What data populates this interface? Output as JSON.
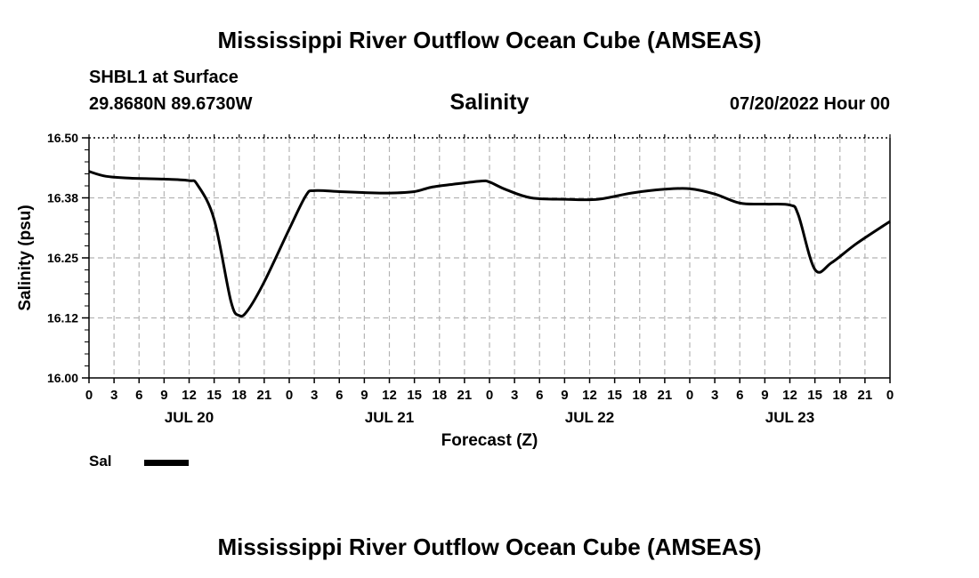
{
  "header": {
    "title": "Mississippi River Outflow Ocean Cube (AMSEAS)",
    "station": "SHBL1 at Surface",
    "coords": "29.8680N  89.6730W",
    "parameter": "Salinity",
    "run_time": "07/20/2022 Hour 00"
  },
  "legend": {
    "label": "Sal",
    "color": "#000000"
  },
  "footer": {
    "title": "Mississippi River Outflow Ocean Cube (AMSEAS)"
  },
  "chart_data": {
    "type": "line",
    "xlabel": "Forecast (Z)",
    "ylabel": "Salinity (psu)",
    "ylim": [
      16.0,
      16.5
    ],
    "xlim": [
      0,
      96
    ],
    "y_ticks": [
      "16.00",
      "16.12",
      "16.25",
      "16.38",
      "16.50"
    ],
    "y_tick_values": [
      16.0,
      16.125,
      16.25,
      16.375,
      16.5
    ],
    "x_ticks": [
      "0",
      "3",
      "6",
      "9",
      "12",
      "15",
      "18",
      "21",
      "0",
      "3",
      "6",
      "9",
      "12",
      "15",
      "18",
      "21",
      "0",
      "3",
      "6",
      "9",
      "12",
      "15",
      "18",
      "21",
      "0",
      "3",
      "6",
      "9",
      "12",
      "15",
      "18",
      "21",
      "0"
    ],
    "day_labels": [
      {
        "label": "JUL 20",
        "hour": 12
      },
      {
        "label": "JUL 21",
        "hour": 36
      },
      {
        "label": "JUL 22",
        "hour": 60
      },
      {
        "label": "JUL 23",
        "hour": 84
      }
    ],
    "grid": true,
    "series": [
      {
        "name": "Sal",
        "color": "#000000",
        "x": [
          0,
          2,
          5,
          9,
          12,
          13,
          15,
          17,
          18,
          19,
          21,
          24,
          26,
          27,
          30,
          33,
          36,
          39,
          41,
          44,
          47,
          48,
          50,
          53,
          57,
          61,
          65,
          69,
          72,
          75,
          78,
          81,
          84,
          85,
          87,
          89,
          92,
          96
        ],
        "y": [
          16.43,
          16.42,
          16.416,
          16.414,
          16.411,
          16.402,
          16.33,
          16.16,
          16.13,
          16.14,
          16.2,
          16.31,
          16.38,
          16.39,
          16.388,
          16.386,
          16.385,
          16.388,
          16.397,
          16.404,
          16.41,
          16.408,
          16.392,
          16.375,
          16.372,
          16.372,
          16.385,
          16.393,
          16.394,
          16.383,
          16.364,
          16.362,
          16.36,
          16.34,
          16.226,
          16.24,
          16.28,
          16.326
        ]
      }
    ]
  }
}
